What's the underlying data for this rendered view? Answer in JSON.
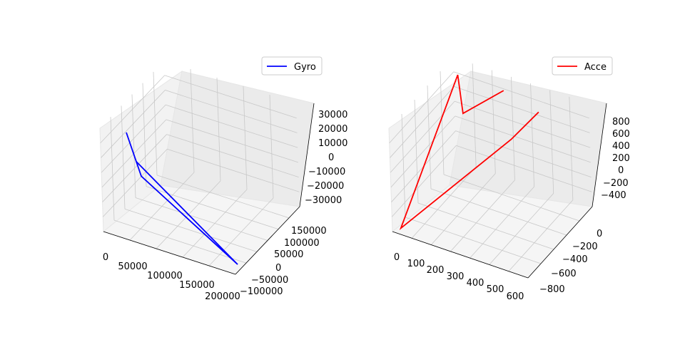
{
  "chart_data": [
    {
      "type": "line3d",
      "legend": {
        "label": "Gyro",
        "placement": "top-right"
      },
      "color": "#0000ff",
      "x": [
        10000,
        20000,
        25000,
        200000,
        20000
      ],
      "y": [
        -20000,
        -10000,
        -5000,
        -90000,
        -10000
      ],
      "z": [
        20000,
        0,
        -10000,
        -30000,
        0
      ],
      "xlim": [
        0,
        200000
      ],
      "ylim": [
        -100000,
        170000
      ],
      "zlim": [
        -35000,
        35000
      ],
      "xticks": [
        "0",
        "50000",
        "100000",
        "150000",
        "200000"
      ],
      "yticks": [
        "−100000",
        "−50000",
        "0",
        "50000",
        "100000",
        "150000"
      ],
      "zticks": [
        "−30000",
        "−20000",
        "−10000",
        "0",
        "10000",
        "20000",
        "30000"
      ],
      "grid": true
    },
    {
      "type": "line3d",
      "legend": {
        "label": "Acce",
        "placement": "top-right"
      },
      "color": "#ff0000",
      "x": [
        450,
        350,
        30,
        50,
        100,
        260
      ],
      "y": [
        -100,
        -200,
        -850,
        0,
        -100,
        0
      ],
      "z": [
        900,
        500,
        -450,
        900,
        500,
        900
      ],
      "xlim": [
        0,
        620
      ],
      "ylim": [
        -880,
        100
      ],
      "zlim": [
        -500,
        1000
      ],
      "xticks": [
        "0",
        "100",
        "200",
        "300",
        "400",
        "500",
        "600"
      ],
      "yticks": [
        "−800",
        "−600",
        "−400",
        "−200",
        "0"
      ],
      "zticks": [
        "−400",
        "−200",
        "0",
        "200",
        "400",
        "600",
        "800"
      ],
      "grid": true
    }
  ]
}
